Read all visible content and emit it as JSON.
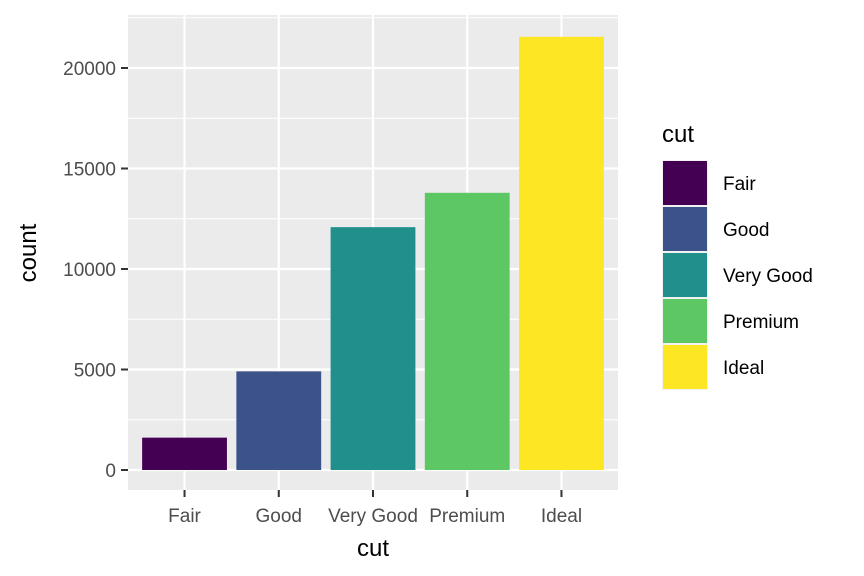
{
  "chart_data": {
    "type": "bar",
    "categories": [
      "Fair",
      "Good",
      "Very Good",
      "Premium",
      "Ideal"
    ],
    "values": [
      1610,
      4906,
      12082,
      13791,
      21551
    ],
    "colors": [
      "#440154",
      "#3B528B",
      "#21908C",
      "#5DC863",
      "#FDE725"
    ],
    "xlabel": "cut",
    "ylabel": "count",
    "ylim": [
      0,
      22000
    ],
    "yticks": [
      0,
      5000,
      10000,
      15000,
      20000
    ],
    "ytick_labels": [
      "0",
      "5000",
      "10000",
      "15000",
      "20000"
    ],
    "grid": true,
    "panel_background": "#EBEBEB",
    "grid_color": "#FFFFFF",
    "legend": {
      "title": "cut",
      "placement": "right",
      "entries": [
        "Fair",
        "Good",
        "Very Good",
        "Premium",
        "Ideal"
      ]
    }
  }
}
